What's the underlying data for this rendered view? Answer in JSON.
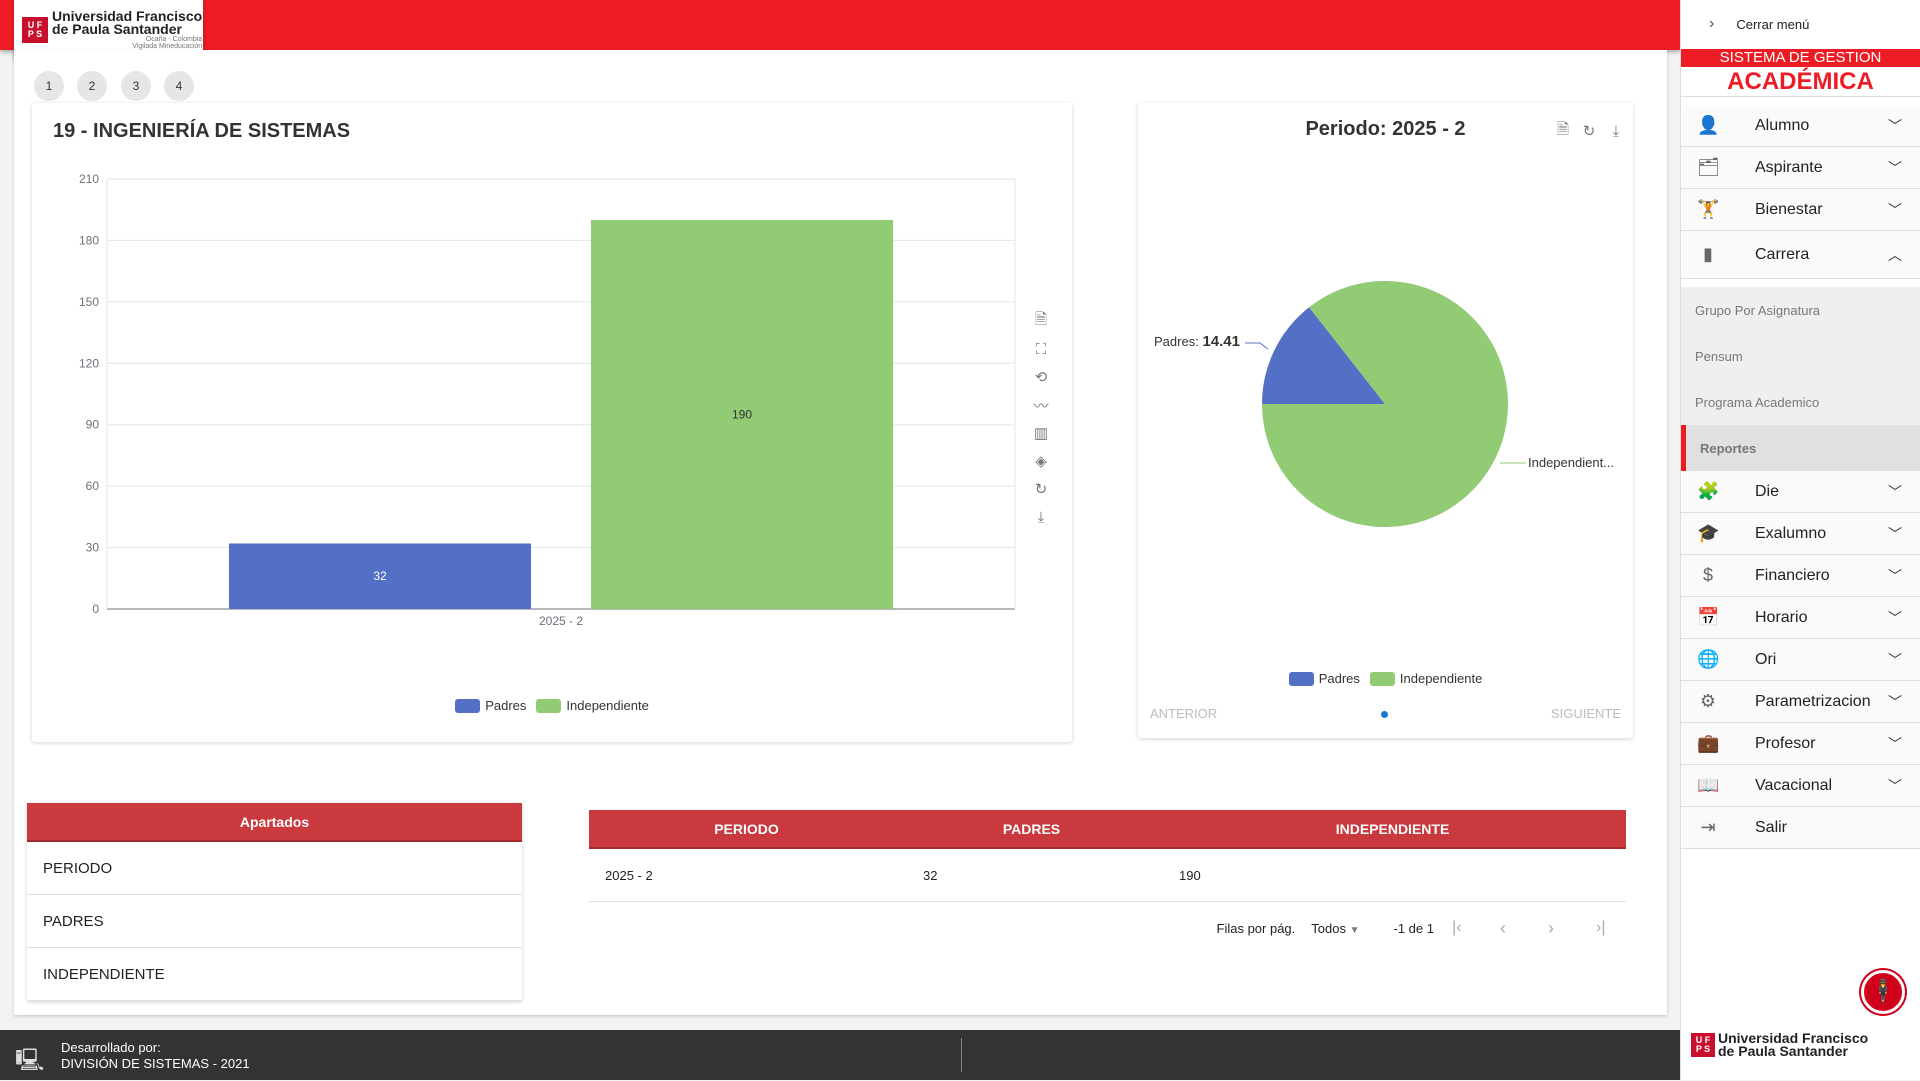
{
  "header": {
    "logo_text_1": "Universidad Francisco",
    "logo_text_2": "de Paula Santander",
    "logo_sub_1": "Ocaña - Colombia",
    "logo_sub_2": "Vigilada Mineducación",
    "logo_mark": "UFPS"
  },
  "pages": [
    "1",
    "2",
    "3",
    "4"
  ],
  "bar_card": {
    "title": "19 - INGENIERÍA DE SISTEMAS",
    "toolbox": [
      "document-icon",
      "zoom-icon",
      "zoom-reset-icon",
      "line-chart-icon",
      "bar-chart-icon",
      "stack-icon",
      "refresh-icon",
      "download-icon"
    ]
  },
  "chart_data": [
    {
      "type": "bar",
      "title": "19 - INGENIERÍA DE SISTEMAS",
      "categories": [
        "2025 - 2"
      ],
      "series": [
        {
          "name": "Padres",
          "values": [
            32
          ],
          "color": "#5470C6"
        },
        {
          "name": "Independiente",
          "values": [
            190
          ],
          "color": "#91CC75"
        }
      ],
      "ylim": [
        0,
        210
      ],
      "yticks": [
        "0",
        "30",
        "60",
        "90",
        "120",
        "150",
        "180",
        "210"
      ],
      "legend": "bottom",
      "grid": true
    },
    {
      "type": "pie",
      "title": "Periodo: 2025 - 2",
      "slices": [
        {
          "name": "Padres",
          "value": 14.41,
          "color": "#5470C6"
        },
        {
          "name": "Independiente",
          "value": 85.59,
          "color": "#91CC75"
        }
      ],
      "labels": {
        "padres_name": "Padres:",
        "padres_value": "14.41",
        "independiente": "Independient..."
      },
      "legend": "bottom"
    }
  ],
  "pie_card": {
    "anterior": "ANTERIOR",
    "siguiente": "SIGUIENTE"
  },
  "apartados": {
    "header": "Apartados",
    "items": [
      "PERIODO",
      "PADRES",
      "INDEPENDIENTE"
    ]
  },
  "table": {
    "columns": [
      "PERIODO",
      "PADRES",
      "INDEPENDIENTE"
    ],
    "rows": [
      [
        "2025 - 2",
        "32",
        "190"
      ]
    ],
    "rows_per_page_label": "Filas por pág.",
    "rows_per_page": "Todos",
    "range": "-1 de 1"
  },
  "footer": {
    "line1": "Desarrollado por:",
    "line2": "DIVISIÓN DE SISTEMAS - 2021"
  },
  "sidebar": {
    "close": "Cerrar menú",
    "brand_top": "SISTEMA DE GESTION",
    "brand_bottom": "ACADÉMICA",
    "items_top": [
      "Alumno",
      "Aspirante",
      "Bienestar",
      "Carrera"
    ],
    "sub": [
      "Grupo Por Asignatura",
      "Pensum",
      "Programa Academico",
      "Reportes"
    ],
    "items_bottom": [
      "Die",
      "Exalumno",
      "Financiero",
      "Horario",
      "Ori",
      "Parametrizacion",
      "Profesor",
      "Vacacional",
      "Salir"
    ]
  }
}
